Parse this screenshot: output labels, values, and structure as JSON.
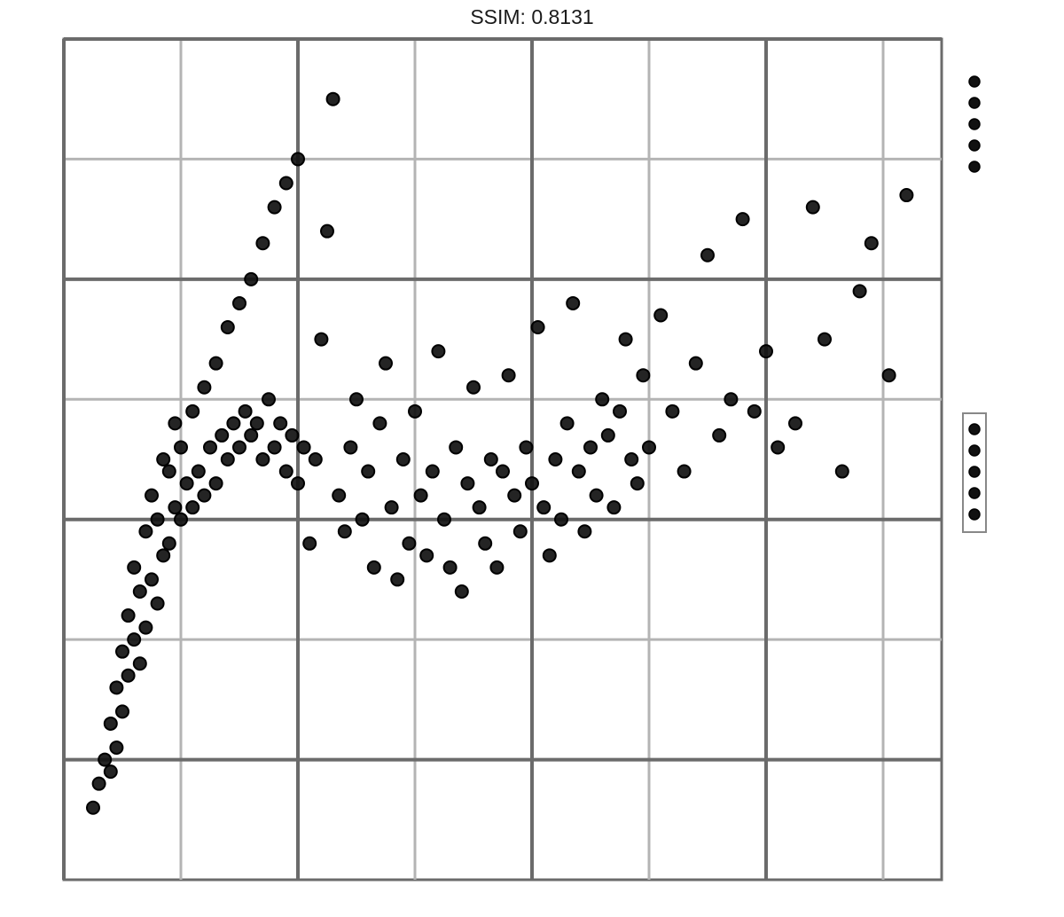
{
  "chart_data": {
    "type": "scatter",
    "title": "SSIM: 0.8131",
    "xlabel": "",
    "ylabel": "",
    "xlim": [
      0,
      15
    ],
    "ylim": [
      0,
      7
    ],
    "x_ticks": [
      0,
      4,
      8,
      12
    ],
    "x_tick_labels": [
      "",
      "",
      "",
      ""
    ],
    "y_ticks": [
      1,
      3,
      5,
      7
    ],
    "y_tick_labels": [
      "",
      "",
      "",
      ""
    ],
    "grid": true,
    "colors": {
      "point_fill": "#111111",
      "point_stroke": "#000000",
      "grid_major": "#6b6b6b",
      "grid_minor": "#b4b4b4",
      "legend_box": "#888888"
    },
    "legends": [
      {
        "title": "",
        "position": "top-right",
        "entries": [
          "",
          "",
          "",
          "",
          ""
        ]
      },
      {
        "title": "",
        "position": "right",
        "entries": [
          "",
          "",
          "",
          "",
          ""
        ]
      }
    ],
    "series": [
      {
        "x": [
          0.5,
          0.6,
          0.7,
          0.8,
          0.8,
          0.9,
          0.9,
          1.0,
          1.0,
          1.1,
          1.1,
          1.2,
          1.2,
          1.3,
          1.3,
          1.4,
          1.4,
          1.5,
          1.5,
          1.6,
          1.6,
          1.7,
          1.7,
          1.8,
          1.8,
          1.9,
          1.9,
          2.0,
          2.0,
          2.1,
          2.2,
          2.2,
          2.3,
          2.4,
          2.4,
          2.5,
          2.6,
          2.6,
          2.7,
          2.8,
          2.8,
          2.9,
          3.0,
          3.0,
          3.1,
          3.2,
          3.2,
          3.3,
          3.4,
          3.4,
          3.5,
          3.6,
          3.6,
          3.7,
          3.8,
          3.8,
          3.9,
          4.0,
          4.0,
          4.1,
          4.2,
          4.3,
          4.4,
          4.5,
          4.6,
          4.7,
          4.8,
          4.9,
          5.0,
          5.1,
          5.2,
          5.3,
          5.4,
          5.5,
          5.6,
          5.7,
          5.8,
          5.9,
          6.0,
          6.1,
          6.2,
          6.3,
          6.4,
          6.5,
          6.6,
          6.7,
          6.8,
          6.9,
          7.0,
          7.1,
          7.2,
          7.3,
          7.4,
          7.5,
          7.6,
          7.7,
          7.8,
          7.9,
          8.0,
          8.1,
          8.2,
          8.3,
          8.4,
          8.5,
          8.6,
          8.7,
          8.8,
          8.9,
          9.0,
          9.1,
          9.2,
          9.3,
          9.4,
          9.5,
          9.6,
          9.7,
          9.8,
          9.9,
          10.0,
          10.2,
          10.4,
          10.6,
          10.8,
          11.0,
          11.2,
          11.4,
          11.6,
          11.8,
          12.0,
          12.2,
          12.5,
          12.8,
          13.0,
          13.3,
          13.6,
          13.8,
          14.1,
          14.4
        ],
        "y": [
          0.6,
          0.8,
          1.0,
          0.9,
          1.3,
          1.1,
          1.6,
          1.4,
          1.9,
          1.7,
          2.2,
          2.0,
          2.6,
          1.8,
          2.4,
          2.1,
          2.9,
          2.5,
          3.2,
          2.3,
          3.0,
          2.7,
          3.5,
          2.8,
          3.4,
          3.1,
          3.8,
          3.0,
          3.6,
          3.3,
          3.1,
          3.9,
          3.4,
          3.2,
          4.1,
          3.6,
          3.3,
          4.3,
          3.7,
          3.5,
          4.6,
          3.8,
          3.6,
          4.8,
          3.9,
          3.7,
          5.0,
          3.8,
          3.5,
          5.3,
          4.0,
          3.6,
          5.6,
          3.8,
          3.4,
          5.8,
          3.7,
          3.3,
          6.0,
          3.6,
          2.8,
          3.5,
          4.5,
          5.4,
          6.5,
          3.2,
          2.9,
          3.6,
          4.0,
          3.0,
          3.4,
          2.6,
          3.8,
          4.3,
          3.1,
          2.5,
          3.5,
          2.8,
          3.9,
          3.2,
          2.7,
          3.4,
          4.4,
          3.0,
          2.6,
          3.6,
          2.4,
          3.3,
          4.1,
          3.1,
          2.8,
          3.5,
          2.6,
          3.4,
          4.2,
          3.2,
          2.9,
          3.6,
          3.3,
          4.6,
          3.1,
          2.7,
          3.5,
          3.0,
          3.8,
          4.8,
          3.4,
          2.9,
          3.6,
          3.2,
          4.0,
          3.7,
          3.1,
          3.9,
          4.5,
          3.5,
          3.3,
          4.2,
          3.6,
          4.7,
          3.9,
          3.4,
          4.3,
          5.2,
          3.7,
          4.0,
          5.5,
          3.9,
          4.4,
          3.6,
          3.8,
          5.6,
          4.5,
          3.4,
          4.9,
          5.3,
          4.2,
          5.7
        ]
      }
    ]
  }
}
